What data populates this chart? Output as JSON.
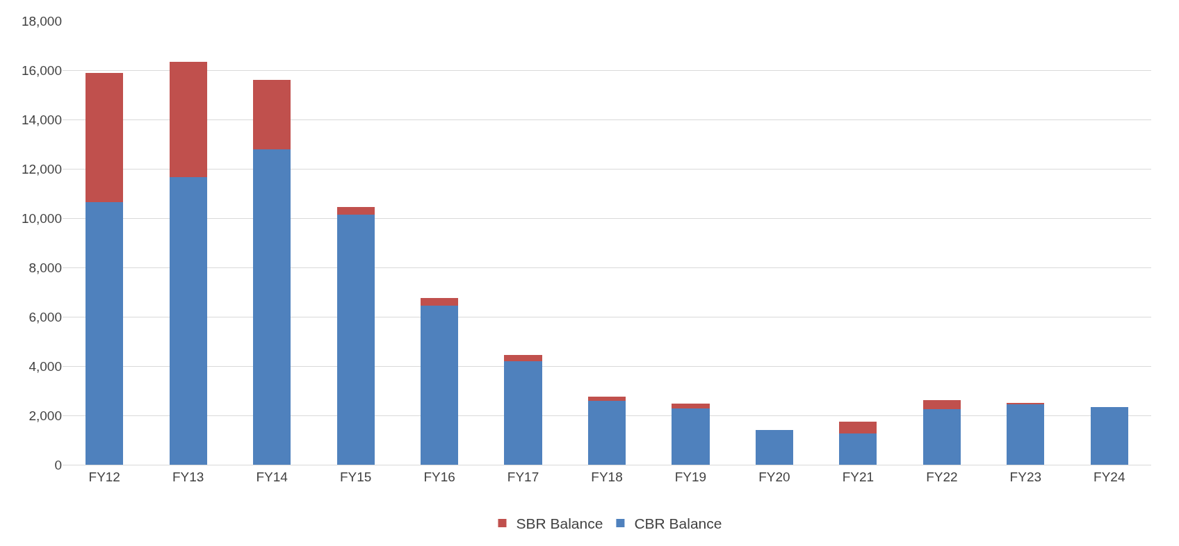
{
  "chart_data": {
    "type": "bar",
    "stacked": true,
    "categories": [
      "FY12",
      "FY13",
      "FY14",
      "FY15",
      "FY16",
      "FY17",
      "FY18",
      "FY19",
      "FY20",
      "FY21",
      "FY22",
      "FY23",
      "FY24"
    ],
    "series": [
      {
        "name": "CBR Balance",
        "color": "#4f81bd",
        "values": [
          10650,
          11650,
          12800,
          10150,
          6450,
          4200,
          2590,
          2290,
          1400,
          1280,
          2260,
          2440,
          2350
        ]
      },
      {
        "name": "SBR Balance",
        "color": "#c0504d",
        "values": [
          5250,
          4700,
          2800,
          300,
          300,
          260,
          180,
          180,
          0,
          480,
          360,
          60,
          0
        ]
      }
    ],
    "ylim": [
      0,
      18000
    ],
    "yticks": [
      {
        "value": 0,
        "label": "0"
      },
      {
        "value": 2000,
        "label": "2,000"
      },
      {
        "value": 4000,
        "label": "4,000"
      },
      {
        "value": 6000,
        "label": "6,000"
      },
      {
        "value": 8000,
        "label": "8,000"
      },
      {
        "value": 10000,
        "label": "10,000"
      },
      {
        "value": 12000,
        "label": "12,000"
      },
      {
        "value": 14000,
        "label": "14,000"
      },
      {
        "value": 16000,
        "label": "16,000"
      },
      {
        "value": 18000,
        "label": "18,000"
      }
    ],
    "grid": "y",
    "legend": "bottom"
  }
}
